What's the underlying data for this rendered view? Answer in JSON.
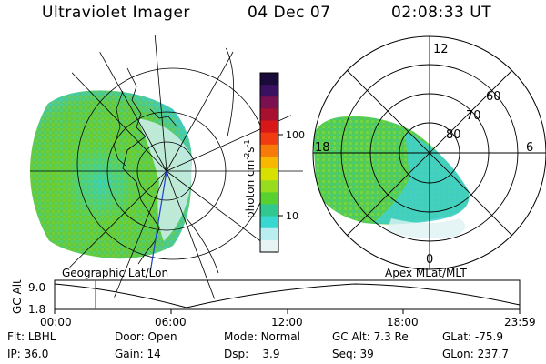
{
  "header": {
    "title": "Ultraviolet Imager",
    "date": "04 Dec 07",
    "time": "02:08:33 UT"
  },
  "panels": {
    "left_title": "Geographic Lat/Lon",
    "right_title": "Apex MLat/MLT"
  },
  "colorbar": {
    "label": "photon cm",
    "label_sup1": "-2",
    "label_mid": "s",
    "label_sup2": "-1",
    "ticks": [
      "100",
      "10"
    ],
    "colors": [
      "#1a0a3a",
      "#3a1060",
      "#7a1050",
      "#a81030",
      "#d81818",
      "#f03c10",
      "#f87a08",
      "#f8b800",
      "#d8e000",
      "#98dc20",
      "#58d030",
      "#30c890",
      "#38d8d0",
      "#b8eef0",
      "#e8f4f4"
    ]
  },
  "right_map": {
    "mlt_labels": [
      "12",
      "18",
      "6",
      "0"
    ],
    "lat_labels": [
      "60",
      "70",
      "80"
    ]
  },
  "altitude_plot": {
    "ylabel": "GC Alt",
    "yticks": [
      "9.0",
      "1.8"
    ],
    "xticks": [
      "00:00",
      "06:00",
      "12:00",
      "18:00",
      "23:59"
    ],
    "marker_time": "02:08"
  },
  "info": {
    "flt_label": "Flt:",
    "flt_value": "LBHL",
    "ip_label": "IP:",
    "ip_value": "36.0",
    "door_label": "Door:",
    "door_value": "Open",
    "gain_label": "Gain:",
    "gain_value": "14",
    "mode_label": "Mode:",
    "mode_value": "Normal",
    "dsp_label": "Dsp:",
    "dsp_value": "3.9",
    "gcalt_label": "GC Alt:",
    "gcalt_value": "7.3 Re",
    "seq_label": "Seq:",
    "seq_value": "39",
    "glat_label": "GLat:",
    "glat_value": "-75.9",
    "glon_label": "GLon:",
    "glon_value": "237.7"
  }
}
